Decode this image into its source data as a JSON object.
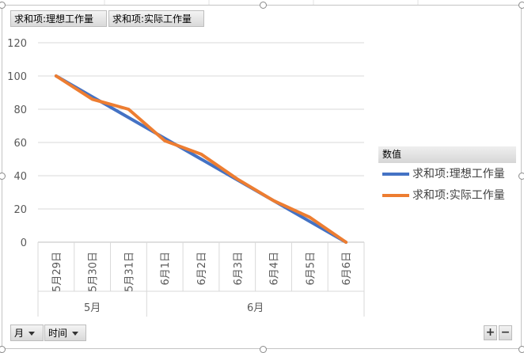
{
  "field_buttons": {
    "ideal": "求和项:理想工作量",
    "actual": "求和项:实际工作量",
    "month": "月",
    "time": "时间"
  },
  "legend": {
    "title": "数值",
    "items": [
      "求和项:理想工作量",
      "求和项:实际工作量"
    ]
  },
  "zoom": {
    "plus": "+",
    "minus": "−"
  },
  "colors": {
    "ideal": "#4472C4",
    "actual": "#ED7D31"
  },
  "chart_data": {
    "type": "line",
    "categories": [
      "5月29日",
      "5月30日",
      "5月31日",
      "6月1日",
      "6月2日",
      "6月3日",
      "6月4日",
      "6月5日",
      "6月6日"
    ],
    "category_groups": [
      {
        "label": "5月",
        "count": 3
      },
      {
        "label": "6月",
        "count": 6
      }
    ],
    "series": [
      {
        "name": "求和项:理想工作量",
        "values": [
          100,
          87.5,
          75,
          62.5,
          50,
          37.5,
          25,
          12.5,
          0
        ]
      },
      {
        "name": "求和项:实际工作量",
        "values": [
          100,
          86,
          80,
          61,
          53,
          38,
          25,
          15,
          0
        ]
      }
    ],
    "yticks": [
      0,
      20,
      40,
      60,
      80,
      100,
      120
    ],
    "ylim": [
      0,
      120
    ],
    "grid": true,
    "legend_position": "right"
  }
}
